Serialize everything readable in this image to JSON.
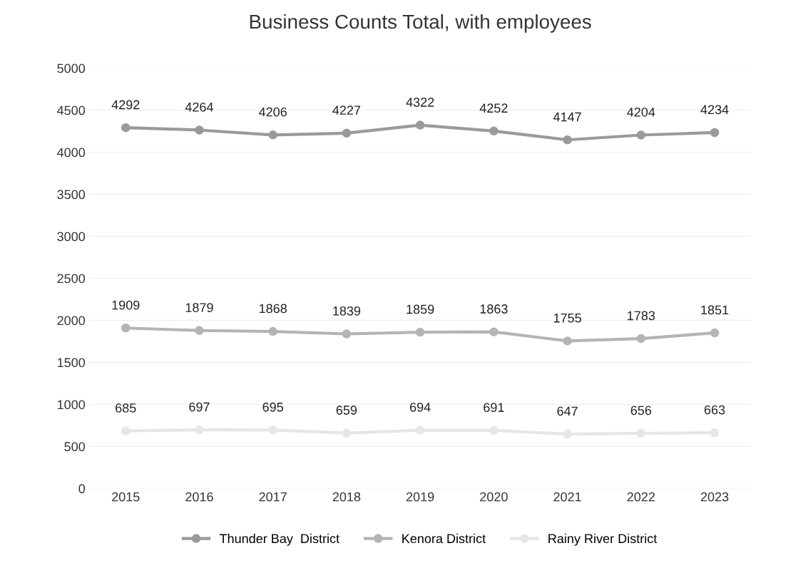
{
  "chart_data": {
    "type": "line",
    "title": "Business Counts Total, with employees",
    "categories": [
      "2015",
      "2016",
      "2017",
      "2018",
      "2019",
      "2020",
      "2021",
      "2022",
      "2023"
    ],
    "series": [
      {
        "name": "Thunder Bay  District",
        "color": "#9a9a9a",
        "values": [
          4292,
          4264,
          4206,
          4227,
          4322,
          4252,
          4147,
          4204,
          4234
        ]
      },
      {
        "name": "Kenora District",
        "color": "#b4b4b4",
        "values": [
          1909,
          1879,
          1868,
          1839,
          1859,
          1863,
          1755,
          1783,
          1851
        ]
      },
      {
        "name": "Rainy River District",
        "color": "#e6e6e6",
        "values": [
          685,
          697,
          695,
          659,
          694,
          691,
          647,
          656,
          663
        ]
      }
    ],
    "ylim": [
      0,
      5000
    ],
    "yticks": [
      0,
      500,
      1000,
      1500,
      2000,
      2500,
      3000,
      3500,
      4000,
      4500,
      5000
    ],
    "grid": "y",
    "legend": "bottom",
    "marker": "circle",
    "line_style": "solid",
    "data_labels": true
  }
}
